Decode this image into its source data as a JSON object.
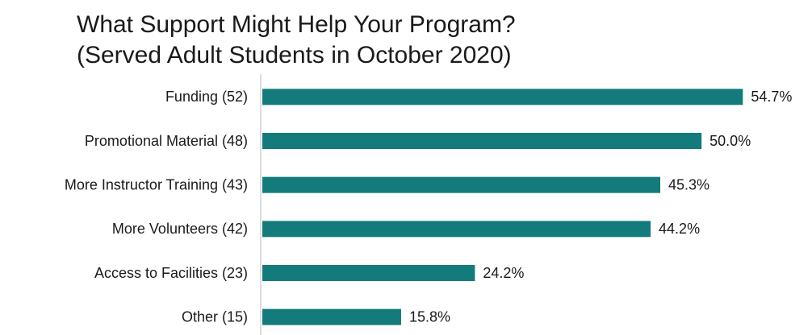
{
  "chart_data": {
    "type": "bar",
    "orientation": "horizontal",
    "title": "What Support Might Help Your Program?",
    "subtitle": "(Served Adult Students in October 2020)",
    "categories": [
      "Funding (52)",
      "Promotional Material (48)",
      "More Instructor Training (43)",
      "More Volunteers (42)",
      "Access to Facilities (23)",
      "Other (15)"
    ],
    "values": [
      54.7,
      50.0,
      45.3,
      44.2,
      24.2,
      15.8
    ],
    "value_labels": [
      "54.7%",
      "50.0%",
      "45.3%",
      "44.2%",
      "24.2%",
      "15.8%"
    ],
    "color": "#137b7b",
    "xlim": [
      0,
      60
    ]
  }
}
